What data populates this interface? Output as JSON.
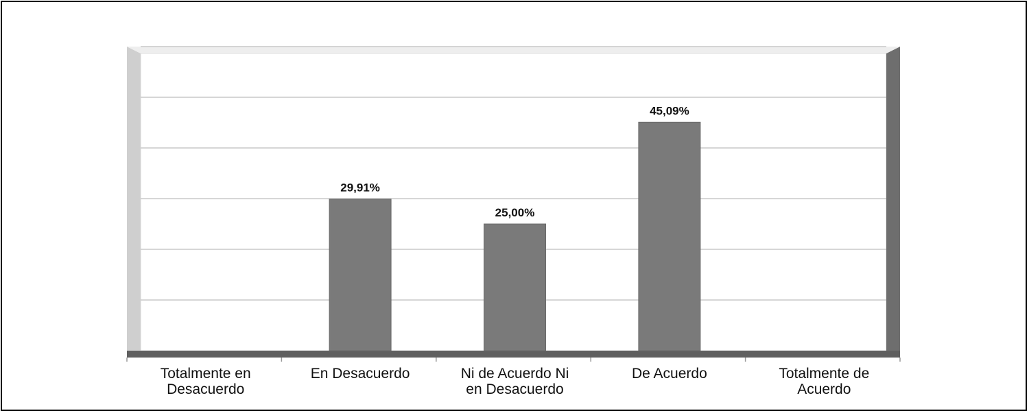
{
  "chart_data": {
    "type": "bar",
    "title": "",
    "xlabel": "",
    "ylabel": "",
    "categories": [
      [
        "Totalmente en",
        "Desacuerdo"
      ],
      [
        "En Desacuerdo"
      ],
      [
        "Ni de Acuerdo Ni",
        "en Desacuerdo"
      ],
      [
        "De Acuerdo"
      ],
      [
        "Totalmente de",
        "Acuerdo"
      ]
    ],
    "values": [
      0,
      29.91,
      25.0,
      45.09,
      0
    ],
    "data_labels": [
      "",
      "29,91%",
      "25,00%",
      "45,09%",
      ""
    ],
    "ylim": [
      0,
      60
    ],
    "grid": true,
    "legend": "none",
    "style": "3d-column",
    "colors": {
      "bar": "#7a7a7a",
      "wall_left": "#cfcfcf",
      "wall_right": "#6e6e6e",
      "floor": "#5f5f5f",
      "grid": "#c8c8c8"
    }
  }
}
